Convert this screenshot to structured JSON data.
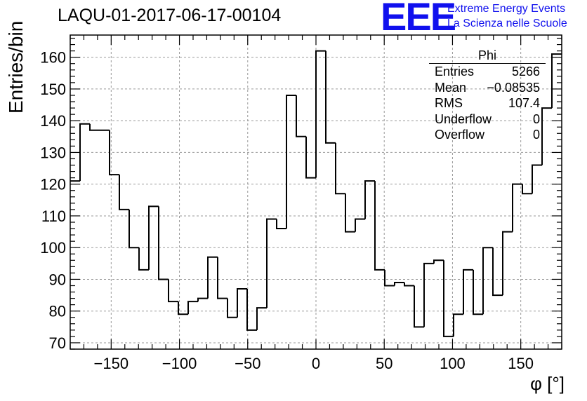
{
  "chart_data": {
    "type": "bar",
    "title": "LAQU-01-2017-06-17-00104",
    "xlabel": "φ [°]",
    "ylabel": "Entries/bin",
    "xlim": [
      -180,
      180
    ],
    "ylim": [
      68,
      167
    ],
    "bin_width": 7.2,
    "x_ticks": [
      -150,
      -100,
      -50,
      0,
      50,
      100,
      150
    ],
    "x_tick_labels": [
      "−150",
      "−100",
      "−50",
      "0",
      "50",
      "100",
      "150"
    ],
    "y_ticks": [
      70,
      80,
      90,
      100,
      110,
      120,
      130,
      140,
      150,
      160
    ],
    "y_tick_labels": [
      "70",
      "80",
      "90",
      "100",
      "110",
      "120",
      "130",
      "140",
      "150",
      "160"
    ],
    "grid": true,
    "values": [
      121,
      139,
      137,
      137,
      123,
      112,
      100,
      93,
      113,
      90,
      83,
      79,
      83,
      84,
      97,
      84,
      78,
      87,
      74,
      81,
      109,
      106,
      148,
      135,
      122,
      162,
      133,
      117,
      105,
      109,
      121,
      93,
      88,
      89,
      88,
      75,
      95,
      96,
      72,
      79,
      93,
      79,
      100,
      85,
      105,
      120,
      117,
      126,
      144,
      161
    ],
    "stats_box": {
      "name": "Phi",
      "rows": [
        {
          "label": "Entries",
          "value": "5266"
        },
        {
          "label": "Mean",
          "value": "−0.08535"
        },
        {
          "label": "RMS",
          "value": "107.4"
        },
        {
          "label": "Underflow",
          "value": "0"
        },
        {
          "label": "Overflow",
          "value": "0"
        }
      ]
    }
  },
  "logo": {
    "mark": "EEE",
    "line1": "Extreme Energy Events",
    "line2": "La Scienza nelle Scuole",
    "color": "#1010ee"
  }
}
